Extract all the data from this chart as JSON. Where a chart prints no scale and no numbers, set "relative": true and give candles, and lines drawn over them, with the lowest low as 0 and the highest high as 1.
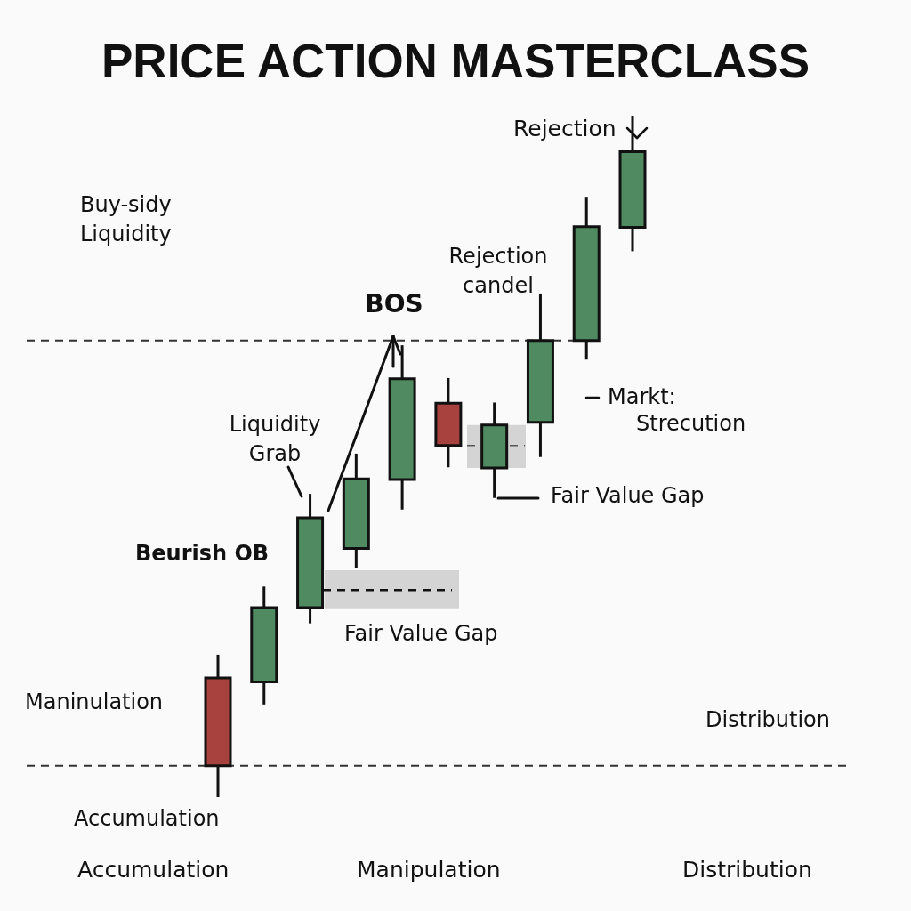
{
  "chart_data": {
    "type": "candlestick",
    "title": "PRICE ACTION MASTERCLASS",
    "categories": [
      null,
      null,
      null,
      null,
      null,
      null,
      null,
      null,
      null,
      null
    ],
    "ohlc": [
      [
        0.175,
        0.209,
        0,
        0.046
      ],
      [
        0.169,
        0.309,
        0.136,
        0.278
      ],
      [
        0.278,
        0.445,
        0.255,
        0.41
      ],
      [
        0.365,
        0.504,
        0.336,
        0.467
      ],
      [
        0.466,
        0.663,
        0.422,
        0.614
      ],
      [
        0.578,
        0.615,
        0.484,
        0.516
      ],
      [
        0.483,
        0.579,
        0.439,
        0.546
      ],
      [
        0.55,
        0.739,
        0.499,
        0.67
      ],
      [
        0.67,
        0.881,
        0.642,
        0.837
      ],
      [
        0.836,
        1,
        0.801,
        0.947
      ]
    ],
    "colors": [
      "#a8423e",
      "#4f8a60",
      "#4f8a60",
      "#4f8a60",
      "#4f8a60",
      "#a8423e",
      "#4f8a60",
      "#4f8a60",
      "#4f8a60",
      "#4f8a60"
    ],
    "relative": true,
    "bands": [
      {
        "axis": "y",
        "from": 0.277,
        "to": 0.333,
        "color": "#d4d4d4"
      },
      {
        "axis": "y",
        "from": 0.483,
        "to": 0.546,
        "color": "#d4d4d4"
      }
    ],
    "ref_lines": [
      {
        "axis": "y",
        "value": 0.67,
        "color": "#333333",
        "line_style": "dashed"
      },
      {
        "axis": "y",
        "value": 0.046,
        "color": "#333333",
        "line_style": "dashed"
      },
      {
        "axis": "y",
        "value": 0.304,
        "color": "#111111",
        "line_style": "dashed"
      },
      {
        "axis": "y",
        "value": 0.516,
        "color": "#555555",
        "line_style": "dashed"
      }
    ],
    "annotations": [
      "Rejection",
      "Buy-sidy Liquidity",
      "Rejection candel",
      "BOS",
      "Markt:",
      "Strecution",
      "Liquidity Grab",
      "Fair Value Gap",
      "Beurish OB",
      "Fair Value Gap",
      "Maninulation",
      "Distribution",
      "Accumulation",
      "Accumulation",
      "Manipulation",
      "Distribution"
    ]
  }
}
